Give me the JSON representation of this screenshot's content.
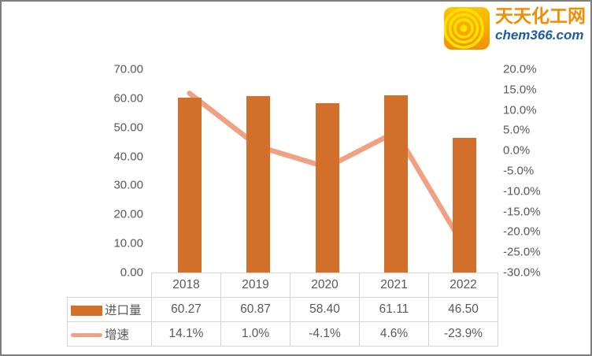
{
  "logo": {
    "brand_name": "天天化工网",
    "brand_domain": "chem366.com",
    "colors": {
      "icon_bg_top": "#FFC200",
      "icon_bg_bottom": "#F29100",
      "icon_ring": "#FFE100",
      "brand_text": "#F28C00",
      "domain_text": "#1C5CA8"
    }
  },
  "chart_data": {
    "type": "bar+line",
    "categories": [
      "2018",
      "2019",
      "2020",
      "2021",
      "2022"
    ],
    "series": [
      {
        "name": "进口量",
        "type": "bar",
        "axis": "left",
        "color": "#D2702B",
        "values": [
          60.27,
          60.87,
          58.4,
          61.11,
          46.5
        ]
      },
      {
        "name": "增速",
        "type": "line",
        "axis": "right",
        "color": "#F0A183",
        "values": [
          14.1,
          1.0,
          -4.1,
          4.6,
          -23.9
        ],
        "unit": "%"
      }
    ],
    "left_axis": {
      "min": 0,
      "max": 70,
      "step": 10,
      "tick_labels": [
        "70.00",
        "60.00",
        "50.00",
        "40.00",
        "30.00",
        "20.00",
        "10.00",
        "0.00"
      ]
    },
    "right_axis": {
      "min": -30,
      "max": 20,
      "step": 5,
      "tick_labels": [
        "20.0%",
        "15.0%",
        "10.0%",
        "5.0%",
        "0.0%",
        "-5.0%",
        "-10.0%",
        "-15.0%",
        "-20.0%",
        "-25.0%",
        "-30.0%"
      ]
    },
    "grid": false,
    "legend_position": "data-table-left"
  },
  "data_table": {
    "header": [
      "2018",
      "2019",
      "2020",
      "2021",
      "2022"
    ],
    "rows": [
      {
        "label": "进口量",
        "swatch": "bar-swatch",
        "values": [
          "60.27",
          "60.87",
          "58.40",
          "61.11",
          "46.50"
        ]
      },
      {
        "label": "增速",
        "swatch": "line-swatch",
        "values": [
          "14.1%",
          "1.0%",
          "-4.1%",
          "4.6%",
          "-23.9%"
        ]
      }
    ]
  },
  "colors": {
    "bar": "#D2702B",
    "line": "#F0A183",
    "axis_text": "#595959",
    "table_border": "#D5D5D5",
    "frame_border": "#7E7E7E"
  }
}
